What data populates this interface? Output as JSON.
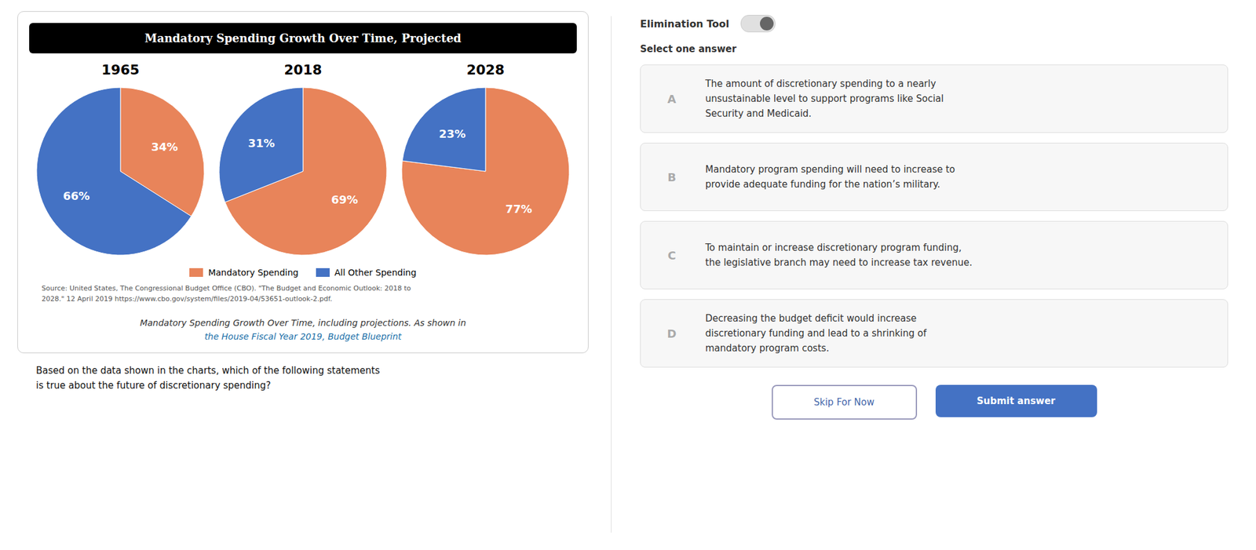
{
  "chart_data": {
    "type": "pie",
    "title": "Mandatory Spending Growth Over Time, Projected",
    "categories": [
      "Mandatory Spending",
      "All Other Spending"
    ],
    "colors": [
      "#E8845A",
      "#4472C4"
    ],
    "series": [
      {
        "name": "1965",
        "values": [
          34,
          66
        ],
        "value_labels": [
          "34%",
          "66%"
        ]
      },
      {
        "name": "2018",
        "values": [
          69,
          31
        ],
        "value_labels": [
          "69%",
          "31%"
        ]
      },
      {
        "name": "2028",
        "values": [
          77,
          23
        ],
        "value_labels": [
          "77%",
          "23%"
        ]
      }
    ],
    "data_labels": true,
    "legend": "bottom",
    "annotations": [
      "Source: United States, The Congressional Budget Office (CBO). \"The Budget and Economic Outlook: 2018 to\n2028.\" 12 April 2019 https://www.cbo.gov/system/files/2019-04/53651-outlook-2.pdf.",
      "Mandatory Spending Growth Over Time, including projections. As shown in",
      "the House Fiscal Year 2019, Budget Blueprint",
      "Based on the data shown in the charts, which of the following statements\nis true about the future of discretionary spending?",
      "Elimination Tool",
      "Select one answer",
      "A",
      "The amount of discretionary spending to a nearly\nunsustainable level to support programs like Social\nSecurity and Medicaid.",
      "B",
      "Mandatory program spending will need to increase to\nprovide adequate funding for the nation’s military.",
      "C",
      "To maintain or increase discretionary program funding,\nthe legislative branch may need to increase tax revenue.",
      "D",
      "Decreasing the budget deficit would increase\ndiscretionary funding and lead to a shrinking of\nmandatory program costs.",
      "Skip For Now",
      "Submit answer"
    ]
  }
}
